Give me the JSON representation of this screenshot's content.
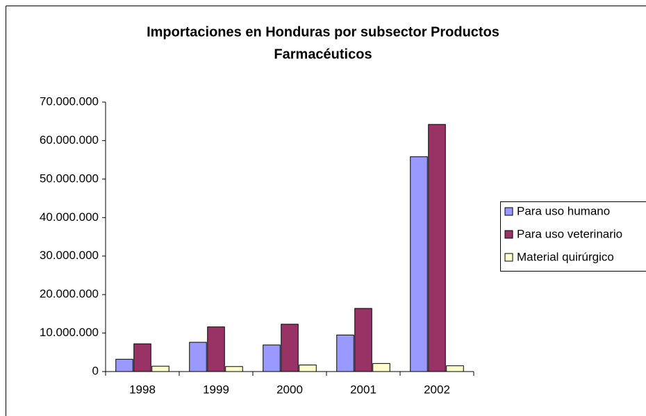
{
  "chart_data": {
    "type": "bar",
    "title": [
      "Importaciones en Honduras por subsector Productos",
      "Farmacéuticos"
    ],
    "categories": [
      "1998",
      "1999",
      "2000",
      "2001",
      "2002"
    ],
    "series": [
      {
        "name": "Para uso humano",
        "color": "#9999ff",
        "values": [
          3200000,
          7600000,
          6900000,
          9500000,
          55800000
        ]
      },
      {
        "name": "Para uso veterinario",
        "color": "#993366",
        "values": [
          7200000,
          11600000,
          12300000,
          16400000,
          64200000
        ]
      },
      {
        "name": "Material quirúrgico",
        "color": "#ffffcc",
        "values": [
          1400000,
          1300000,
          1700000,
          2100000,
          1500000
        ]
      }
    ],
    "ylim": [
      0,
      70000000
    ],
    "yticks": [
      0,
      {
        "value": 10000000,
        "label": "10.000.000"
      },
      {
        "value": 20000000,
        "label": "20.000.000"
      },
      {
        "value": 30000000,
        "label": "30.000.000"
      },
      {
        "value": 40000000,
        "label": "40.000.000"
      },
      {
        "value": 50000000,
        "label": "50.000.000"
      },
      {
        "value": 60000000,
        "label": "60.000.000"
      },
      {
        "value": 70000000,
        "label": "70.000.000"
      }
    ],
    "grid": false,
    "legend": "right"
  }
}
